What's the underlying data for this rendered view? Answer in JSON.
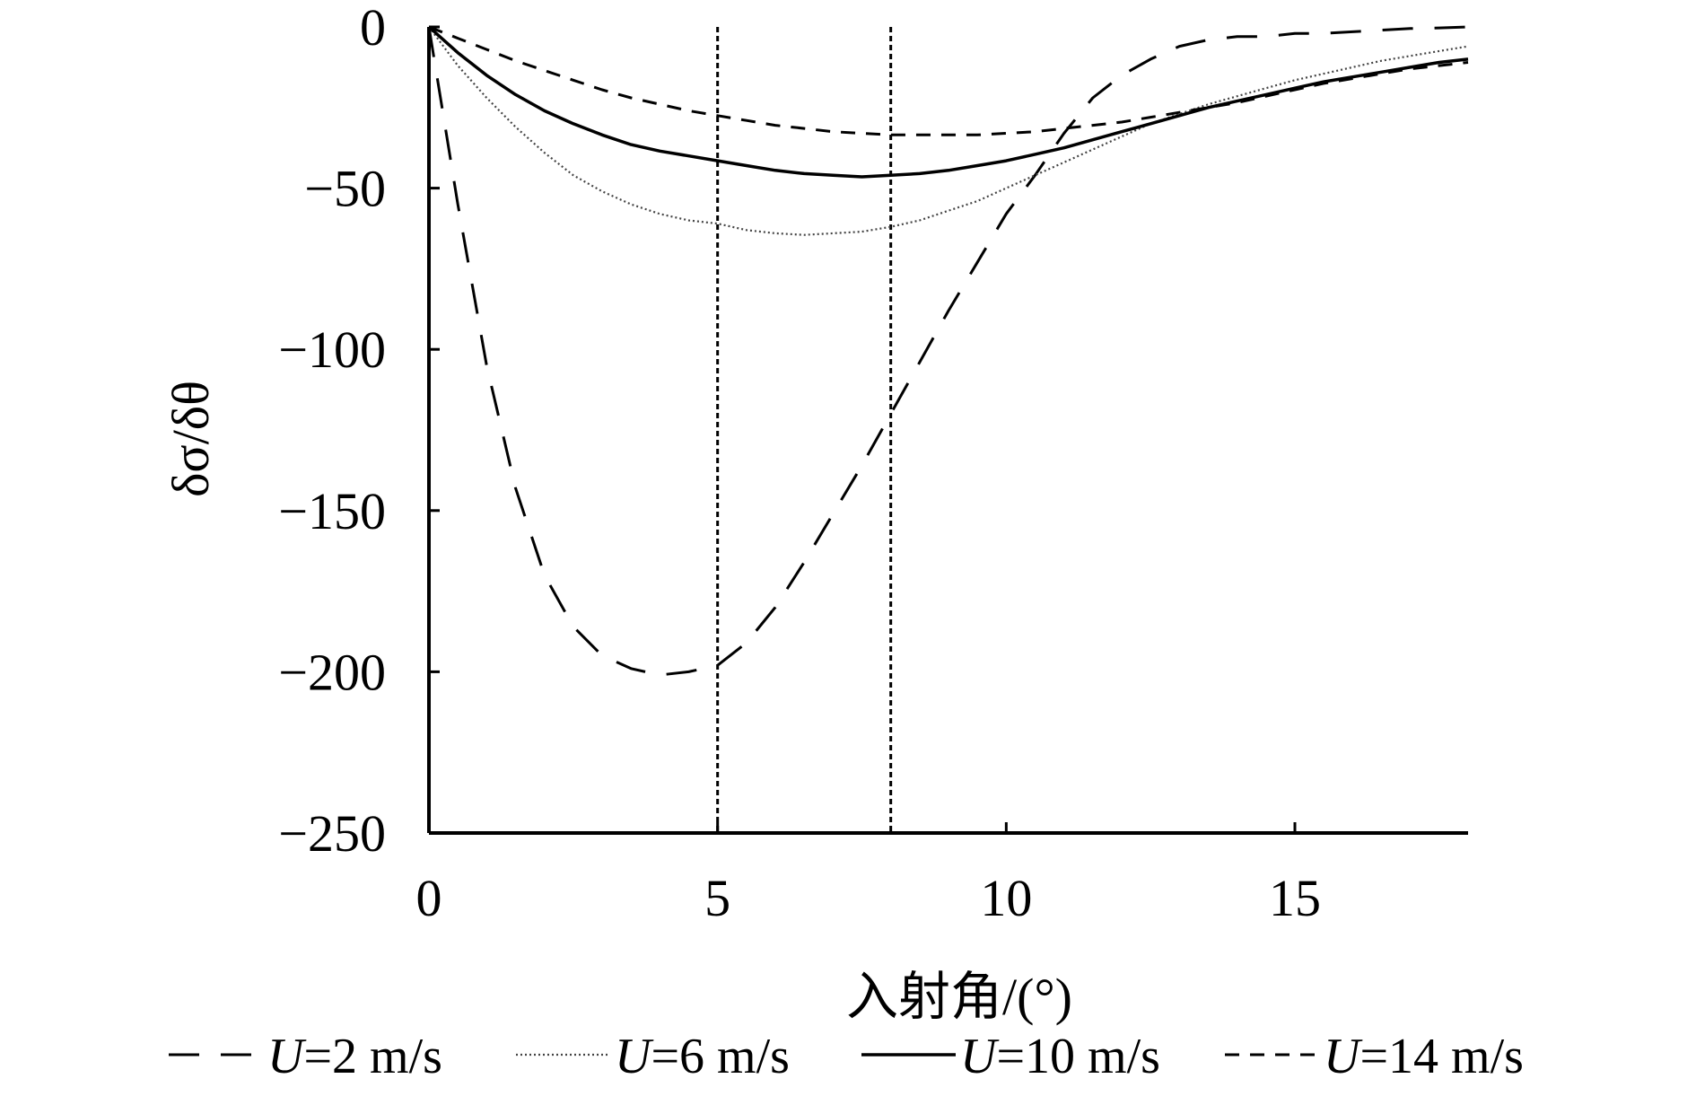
{
  "chart_data": {
    "type": "line",
    "xlabel": "入射角/(°)",
    "ylabel": "δσ/δθ",
    "xlim": [
      0,
      18
    ],
    "ylim": [
      -250,
      0
    ],
    "x_ticks": [
      "0",
      "5",
      "10",
      "15"
    ],
    "y_ticks": [
      "0",
      "−50",
      "−100",
      "−150",
      "−200",
      "−250"
    ],
    "x_tick_values": [
      0,
      5,
      10,
      15
    ],
    "y_tick_values": [
      0,
      -50,
      -100,
      -150,
      -200,
      -250
    ],
    "grid": false,
    "legend_position": "bottom",
    "reference_lines_x": [
      5,
      8
    ],
    "series": [
      {
        "name_prefix": "U",
        "name_suffix": "=2 m/s",
        "style": "dashed",
        "x": [
          0,
          0.5,
          1,
          1.5,
          2,
          2.5,
          3,
          3.5,
          4,
          4.5,
          5,
          5.5,
          6,
          6.5,
          7,
          7.5,
          8,
          8.5,
          9,
          9.5,
          10,
          10.5,
          11,
          11.5,
          12,
          12.5,
          13,
          13.5,
          14,
          14.5,
          15,
          15.5,
          16,
          16.5,
          17,
          17.5,
          18
        ],
        "y": [
          0,
          -55,
          -105,
          -143,
          -170,
          -186,
          -195,
          -199,
          -201,
          -200,
          -198,
          -191,
          -180,
          -166,
          -151,
          -136,
          -120,
          -104,
          -88,
          -73,
          -58,
          -46,
          -33,
          -22,
          -15,
          -10,
          -6,
          -4,
          -3,
          -3,
          -2,
          -2,
          -1.5,
          -1,
          -0.5,
          -0.3,
          0
        ]
      },
      {
        "name_prefix": "U",
        "name_suffix": "=6 m/s",
        "style": "dotted",
        "x": [
          0,
          0.5,
          1,
          1.5,
          2,
          2.5,
          3,
          3.5,
          4,
          4.5,
          5,
          5.5,
          6,
          6.5,
          7,
          7.5,
          8,
          8.5,
          9,
          9.5,
          10,
          10.5,
          11,
          11.5,
          12,
          12.5,
          13,
          13.5,
          14,
          14.5,
          15,
          15.5,
          16,
          16.5,
          17,
          17.5,
          18
        ],
        "y": [
          0,
          -12,
          -22,
          -31,
          -39,
          -46,
          -51,
          -55,
          -58,
          -60,
          -61,
          -63,
          -64,
          -64.5,
          -64,
          -63.5,
          -62,
          -60,
          -57,
          -54,
          -50,
          -46,
          -42,
          -38,
          -34,
          -30,
          -27,
          -24,
          -21.5,
          -19,
          -16.5,
          -14.5,
          -12.5,
          -10.5,
          -9,
          -7.5,
          -6
        ]
      },
      {
        "name_prefix": "U",
        "name_suffix": "=10 m/s",
        "style": "solid",
        "x": [
          0,
          0.5,
          1,
          1.5,
          2,
          2.5,
          3,
          3.5,
          4,
          4.5,
          5,
          5.5,
          6,
          6.5,
          7,
          7.5,
          8,
          8.5,
          9,
          9.5,
          10,
          10.5,
          11,
          11.5,
          12,
          12.5,
          13,
          13.5,
          14,
          14.5,
          15,
          15.5,
          16,
          16.5,
          17,
          17.5,
          18
        ],
        "y": [
          0,
          -8,
          -15,
          -21,
          -26,
          -30,
          -33.5,
          -36.5,
          -38.5,
          -40,
          -41.5,
          -43,
          -44.5,
          -45.5,
          -46,
          -46.5,
          -46,
          -45.5,
          -44.5,
          -43,
          -41.5,
          -39.5,
          -37.5,
          -35,
          -32.5,
          -30,
          -27.5,
          -25,
          -23,
          -21,
          -19,
          -17,
          -15.5,
          -14,
          -12.5,
          -11,
          -10
        ]
      },
      {
        "name_prefix": "U",
        "name_suffix": "=14 m/s",
        "style": "short-dashed",
        "x": [
          0,
          0.5,
          1,
          1.5,
          2,
          2.5,
          3,
          3.5,
          4,
          4.5,
          5,
          5.5,
          6,
          6.5,
          7,
          7.5,
          8,
          8.5,
          9,
          9.5,
          10,
          10.5,
          11,
          11.5,
          12,
          12.5,
          13,
          13.5,
          14,
          14.5,
          15,
          15.5,
          16,
          16.5,
          17,
          17.5,
          18
        ],
        "y": [
          0,
          -3.5,
          -7,
          -10.5,
          -13.5,
          -16.5,
          -19.5,
          -22,
          -24,
          -26,
          -27.5,
          -29,
          -30.5,
          -31.5,
          -32.5,
          -33,
          -33.5,
          -33.5,
          -33.5,
          -33.5,
          -33,
          -32.5,
          -31.5,
          -30.5,
          -29.5,
          -28,
          -26.5,
          -25,
          -23.5,
          -21.5,
          -19.5,
          -17.5,
          -16,
          -14.5,
          -13,
          -12,
          -11
        ]
      }
    ]
  }
}
